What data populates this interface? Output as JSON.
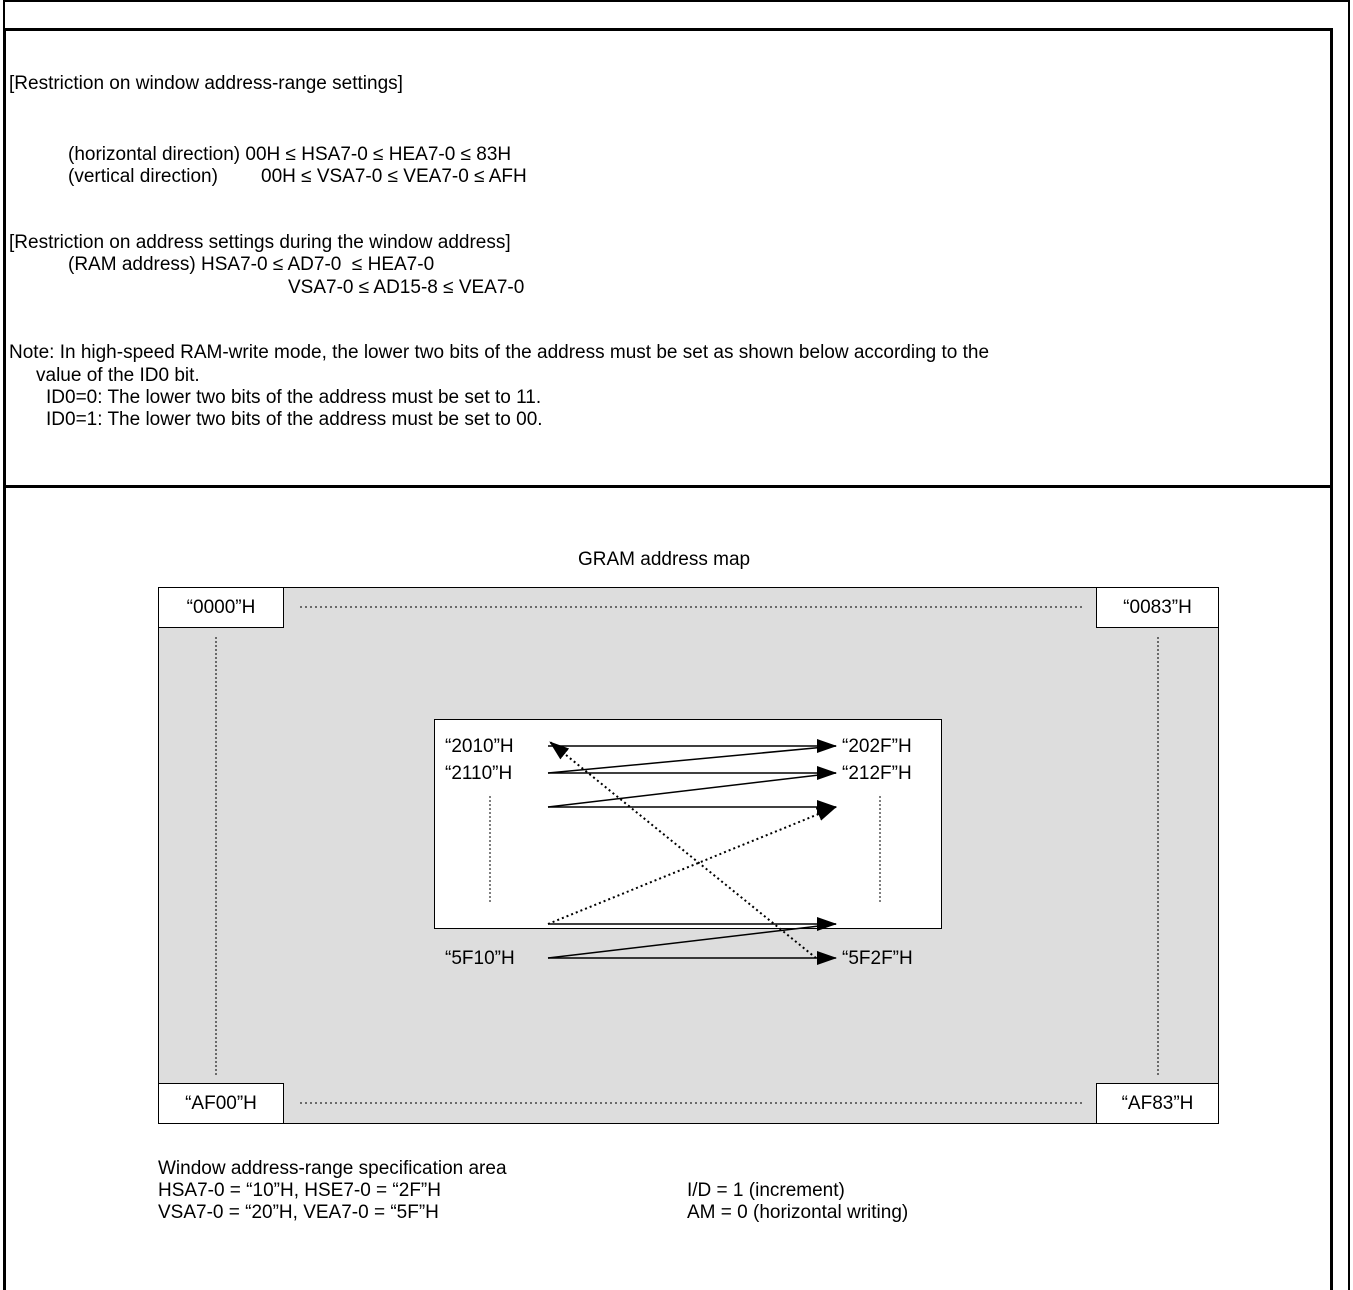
{
  "restriction_window": {
    "heading": "[Restriction on window address-range settings]",
    "horizontal_line": "(horizontal direction) 00H ≤ HSA7-0 ≤ HEA7-0 ≤ 83H",
    "vertical_label": "(vertical direction)",
    "vertical_expr": "00H ≤ VSA7-0 ≤ VEA7-0 ≤ AFH"
  },
  "restriction_address": {
    "heading": "[Restriction on address settings during the window address]",
    "ram_line": "(RAM address) HSA7-0 ≤ AD7-0  ≤ HEA7-0",
    "ram_line2": "VSA7-0 ≤ AD15-8 ≤ VEA7-0"
  },
  "note": {
    "line1": "Note: In high-speed RAM-write mode, the lower two bits of the address must be set as shown below according to the",
    "line2": "value of the ID0 bit.",
    "id0_0": "ID0=0: The lower two bits of the address must be set to 11.",
    "id0_1": "ID0=1: The lower two bits of the address must be set to 00."
  },
  "map": {
    "title": "GRAM address map",
    "corner_tl": "“0000”H",
    "corner_tr": "“0083”H",
    "corner_bl": "“AF00”H",
    "corner_br": "“AF83”H",
    "win_r1_left": "“2010”H",
    "win_r1_right": "“202F”H",
    "win_r2_left": "“2110”H",
    "win_r2_right": "“212F”H",
    "win_last_left": "“5F10”H",
    "win_last_right": "“5F2F”H"
  },
  "spec": {
    "heading": "Window address-range specification area",
    "hsa": "HSA7-0 = “10”H, HSE7-0 = “2F”H",
    "vsa": "VSA7-0 = “20”H, VEA7-0 = “5F”H",
    "id": "I/D = 1 (increment)",
    "am": "AM = 0 (horizontal writing)"
  }
}
